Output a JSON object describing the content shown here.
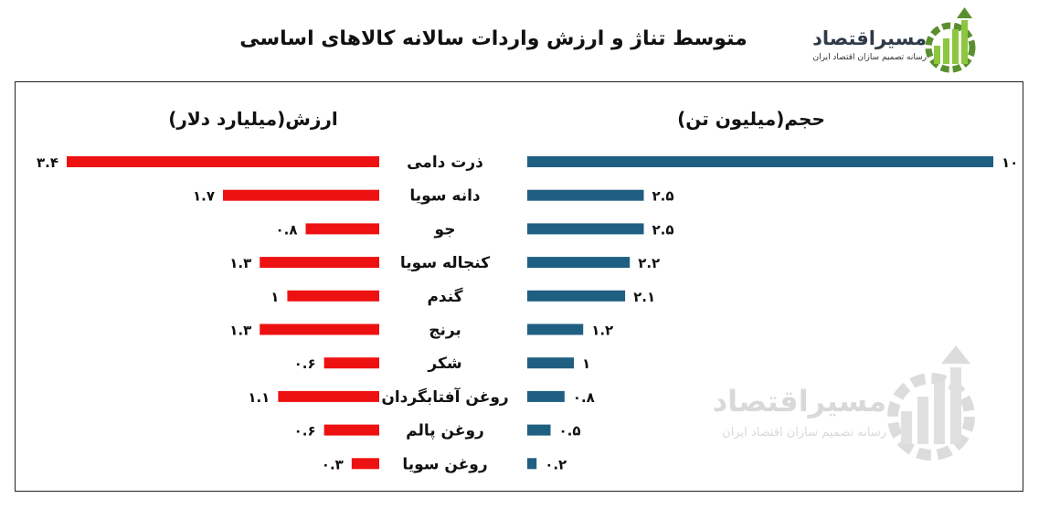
{
  "title": "متوسط تناژ و ارزش واردات سالانه کالاهای اساسی",
  "logo": {
    "name": "مسیراقتصاد",
    "tagline": "رسانه تصمیم سازان اقتصاد ایران",
    "colors": {
      "green": "#5a8f2e",
      "light_green": "#8dc63f",
      "dark": "#2f3a4a"
    }
  },
  "watermark": {
    "name": "مسیراقتصاد",
    "tagline": "رسانه تصمیم سازان اقتصاد ایران"
  },
  "chart_data": [
    {
      "type": "bar",
      "orientation": "horizontal",
      "title": "حجم(میلیون تن)",
      "color": "#1f5f82",
      "categories": [
        "ذرت دامی",
        "دانه سویا",
        "جو",
        "کنجاله سویا",
        "گندم",
        "برنج",
        "شکر",
        "روغن آفتابگردان",
        "روغن پالم",
        "روغن سویا"
      ],
      "values": [
        10,
        2.5,
        2.5,
        2.2,
        2.1,
        1.2,
        1,
        0.8,
        0.5,
        0.2
      ],
      "value_labels": [
        "۱۰",
        "۲.۵",
        "۲.۵",
        "۲.۲",
        "۲.۱",
        "۱.۲",
        "۱",
        "۰.۸",
        "۰.۵",
        "۰.۲"
      ],
      "xlim": [
        0,
        10
      ],
      "grid": false,
      "legend": "none"
    },
    {
      "type": "bar",
      "orientation": "horizontal",
      "title": "ارزش(میلیارد دلار)",
      "color": "#ee1111",
      "categories": [
        "ذرت دامی",
        "دانه سویا",
        "جو",
        "کنجاله سویا",
        "گندم",
        "برنج",
        "شکر",
        "روغن آفتابگردان",
        "روغن پالم",
        "روغن سویا"
      ],
      "values": [
        3.4,
        1.7,
        0.8,
        1.3,
        1,
        1.3,
        0.6,
        1.1,
        0.6,
        0.3
      ],
      "value_labels": [
        "۳.۴",
        "۱.۷",
        "۰.۸",
        "۱.۳",
        "۱",
        "۱.۳",
        "۰.۶",
        "۱.۱",
        "۰.۶",
        "۰.۳"
      ],
      "xlim": [
        0,
        3.4
      ],
      "grid": false,
      "legend": "none"
    }
  ]
}
